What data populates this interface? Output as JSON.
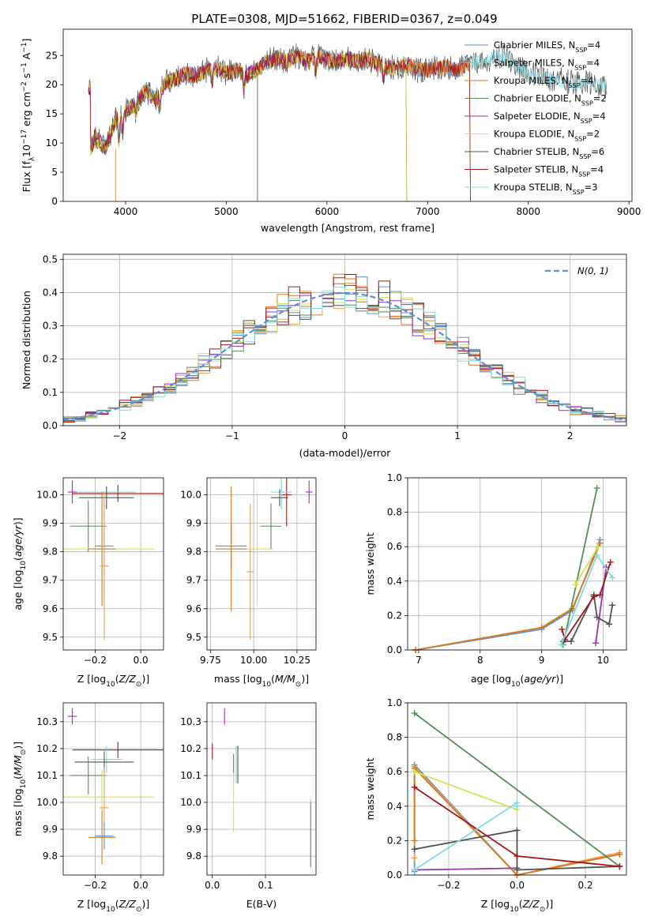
{
  "title": "PLATE=0308, MJD=51662, FIBERID=0367, z=0.049",
  "colors": {
    "Chabrier MILES": "#5b8fd6",
    "Salpeter MILES": "#f0a050",
    "Kroupa MILES": "#d57a1e",
    "Chabrier ELODIE": "#5a8a5a",
    "Salpeter ELODIE": "#9b2fb0",
    "Kroupa ELODIE": "#d8e04a",
    "Chabrier STELIB": "#505050",
    "Salpeter STELIB": "#a01818",
    "Kroupa STELIB": "#80d8e0",
    "gaussian": "#5b8fd6"
  },
  "chart_data": [
    {
      "id": "spectrum",
      "type": "line",
      "xlabel": "wavelength [Angstrom, rest frame]",
      "ylabel": "Flux [fλ10^-17 erg cm^-2 s^-1 A^-1]",
      "xlim": [
        3380,
        9030
      ],
      "ylim": [
        0,
        29.5
      ],
      "xticks": [
        4000,
        5000,
        6000,
        7000,
        8000,
        9000
      ],
      "yticks": [
        0,
        5,
        10,
        15,
        20,
        25
      ],
      "grid": false,
      "legend_placement": "right",
      "envelope": [
        [
          3650,
          9
        ],
        [
          3700,
          11
        ],
        [
          3800,
          9
        ],
        [
          3900,
          14
        ],
        [
          4000,
          15.5
        ],
        [
          4100,
          16.5
        ],
        [
          4200,
          19
        ],
        [
          4300,
          17.5
        ],
        [
          4400,
          20.5
        ],
        [
          4500,
          21
        ],
        [
          4600,
          22
        ],
        [
          4700,
          21.5
        ],
        [
          4800,
          22.5
        ],
        [
          4900,
          23
        ],
        [
          5000,
          22
        ],
        [
          5100,
          22.5
        ],
        [
          5200,
          21.5
        ],
        [
          5300,
          22.5
        ],
        [
          5400,
          24
        ],
        [
          5500,
          24.5
        ],
        [
          5600,
          24
        ],
        [
          5700,
          25
        ],
        [
          5800,
          24
        ],
        [
          5900,
          25
        ],
        [
          6000,
          24.5
        ],
        [
          6100,
          24
        ],
        [
          6200,
          24.5
        ],
        [
          6300,
          24
        ],
        [
          6400,
          24.5
        ],
        [
          6500,
          23.5
        ],
        [
          6600,
          23
        ],
        [
          6700,
          23
        ],
        [
          6800,
          23.5
        ],
        [
          6900,
          22.5
        ],
        [
          7000,
          22.5
        ],
        [
          7100,
          23
        ],
        [
          7200,
          23
        ],
        [
          7300,
          22.5
        ],
        [
          7400,
          23.5
        ],
        [
          7500,
          24
        ],
        [
          7600,
          24
        ],
        [
          7700,
          25
        ],
        [
          7800,
          24.5
        ],
        [
          7900,
          23
        ],
        [
          8000,
          22
        ],
        [
          8100,
          21.5
        ],
        [
          8200,
          21
        ],
        [
          8300,
          21
        ],
        [
          8400,
          20.5
        ],
        [
          8500,
          20
        ],
        [
          8600,
          20.5
        ],
        [
          8700,
          20
        ],
        [
          8780,
          19.5
        ]
      ],
      "series": [
        {
          "name": "Chabrier MILES, N_SSP=4",
          "label": "Chabrier MILES, N",
          "n": "=4",
          "xmax": 7420
        },
        {
          "name": "Salpeter MILES, N_SSP=4",
          "label": "Salpeter MILES, N",
          "n": "=4",
          "xmax": 7420
        },
        {
          "name": "Kroupa MILES, N_SSP=4",
          "label": "Kroupa MILES, N",
          "n": "=4",
          "xmax": 7420
        },
        {
          "name": "Chabrier ELODIE, N_SSP=2",
          "label": "Chabrier ELODIE, N",
          "n": "=2",
          "xmax": 6790
        },
        {
          "name": "Salpeter ELODIE, N_SSP=4",
          "label": "Salpeter ELODIE, N",
          "n": "=4",
          "xmax": 6790
        },
        {
          "name": "Kroupa ELODIE, N_SSP=2",
          "label": "Kroupa ELODIE, N",
          "n": "=2",
          "xmax": 6790
        },
        {
          "name": "Chabrier STELIB, N_SSP=6",
          "label": "Chabrier STELIB, N",
          "n": "=6",
          "xmax": 8780
        },
        {
          "name": "Salpeter STELIB, N_SSP=4",
          "label": "Salpeter STELIB, N",
          "n": "=4",
          "xmax": 7420
        },
        {
          "name": "Kroupa STELIB, N_SSP=3",
          "label": "Kroupa STELIB, N",
          "n": "=3",
          "xmax": 8780
        }
      ]
    },
    {
      "id": "residuals",
      "type": "bar",
      "xlabel": "(data-model)/error",
      "ylabel": "Normed distribution",
      "xlim": [
        -2.5,
        2.5
      ],
      "ylim": [
        0,
        0.515
      ],
      "xticks": [
        -2,
        -1,
        0,
        1,
        2
      ],
      "yticks": [
        0.0,
        0.1,
        0.2,
        0.3,
        0.4,
        0.5
      ],
      "grid": true,
      "legend": "N(0, 1)",
      "legend_placement": "top-right",
      "bin_width": 0.1,
      "bin_start": -2.5,
      "gaussian": {
        "mean": 0,
        "sigma": 1
      }
    },
    {
      "id": "age-vs-Z",
      "type": "scatter",
      "xlabel": "Z [log10(Z/Z⊙)]",
      "ylabel": "age  [log10(age/yr)]",
      "xlim": [
        -0.34,
        0.1
      ],
      "ylim": [
        9.455,
        10.06
      ],
      "xticks": [
        -0.2,
        0.0
      ],
      "yticks": [
        9.5,
        9.6,
        9.7,
        9.8,
        9.9,
        10.0
      ],
      "grid": true,
      "points": [
        {
          "series": "Salpeter ELODIE",
          "x": -0.3,
          "y": 10.01,
          "xerr": 0.02,
          "yerr": 0.04
        },
        {
          "series": "Salpeter STELIB",
          "x": -0.1,
          "y": 10.005,
          "xerr": 0.2,
          "yerr": 0.03
        },
        {
          "series": "Kroupa STELIB",
          "x": -0.15,
          "y": 10.01,
          "xerr": 0.13,
          "yerr": 0.02
        },
        {
          "series": "Chabrier STELIB",
          "x": -0.15,
          "y": 9.99,
          "xerr": 0.12,
          "yerr": 0.04
        },
        {
          "series": "Chabrier ELODIE",
          "x": -0.23,
          "y": 9.89,
          "xerr": 0.08,
          "yerr": 0.09
        },
        {
          "series": "Chabrier MILES",
          "x": -0.16,
          "y": 9.82,
          "xerr": 0.04,
          "yerr": 0.18
        },
        {
          "series": "Kroupa ELODIE",
          "x": -0.17,
          "y": 9.81,
          "xerr": 0.23,
          "yerr": 0.16
        },
        {
          "series": "Kroupa MILES",
          "x": -0.17,
          "y": 9.81,
          "xerr": 0.06,
          "yerr": 0.2
        },
        {
          "series": "Salpeter MILES",
          "x": -0.16,
          "y": 9.75,
          "xerr": 0.02,
          "yerr": 0.26
        }
      ]
    },
    {
      "id": "age-vs-mass",
      "type": "scatter",
      "xlabel": "mass [log10(M/M⊙)]",
      "ylabel": "",
      "xlim": [
        9.73,
        10.36
      ],
      "ylim": [
        9.455,
        10.06
      ],
      "xticks": [
        9.75,
        10.0,
        10.25
      ],
      "yticks": [
        9.5,
        9.6,
        9.7,
        9.8,
        9.9,
        10.0
      ],
      "grid": true,
      "points": [
        {
          "series": "Salpeter ELODIE",
          "x": 10.32,
          "y": 10.01,
          "xerr": 0.02,
          "yerr": 0.04
        },
        {
          "series": "Salpeter STELIB",
          "x": 10.19,
          "y": 10.0,
          "xerr": 0.03,
          "yerr": 0.11
        },
        {
          "series": "Kroupa STELIB",
          "x": 10.16,
          "y": 10.01,
          "xerr": 0.06,
          "yerr": 0.06
        },
        {
          "series": "Chabrier STELIB",
          "x": 10.15,
          "y": 9.99,
          "xerr": 0.05,
          "yerr": 0.03
        },
        {
          "series": "Chabrier ELODIE",
          "x": 10.1,
          "y": 9.89,
          "xerr": 0.06,
          "yerr": 0.08
        },
        {
          "series": "Kroupa ELODIE",
          "x": 10.02,
          "y": 9.81,
          "xerr": 0.09,
          "yerr": 0.2
        },
        {
          "series": "Chabrier MILES",
          "x": 9.87,
          "y": 9.82,
          "xerr": 0.09,
          "yerr": 0.08
        },
        {
          "series": "Kroupa MILES",
          "x": 9.87,
          "y": 9.81,
          "xerr": 0.09,
          "yerr": 0.22
        },
        {
          "series": "Salpeter MILES",
          "x": 9.98,
          "y": 9.73,
          "xerr": 0.02,
          "yerr": 0.24
        }
      ]
    },
    {
      "id": "weight-vs-age",
      "type": "line",
      "xlabel": "age  [log10(age/yr)]",
      "ylabel": "mass weight",
      "xlim": [
        6.82,
        10.38
      ],
      "ylim": [
        0,
        1.0
      ],
      "xticks": [
        7,
        8,
        9,
        10
      ],
      "yticks": [
        0.0,
        0.2,
        0.4,
        0.6,
        0.8,
        1.0
      ],
      "grid": true,
      "series": [
        {
          "name": "Chabrier MILES",
          "points": [
            [
              6.95,
              0.0
            ],
            [
              9.0,
              0.12
            ],
            [
              9.5,
              0.23
            ],
            [
              9.95,
              0.64
            ]
          ]
        },
        {
          "name": "Salpeter MILES",
          "points": [
            [
              6.95,
              0.0
            ],
            [
              9.0,
              0.13
            ],
            [
              9.5,
              0.24
            ],
            [
              9.95,
              0.62
            ]
          ]
        },
        {
          "name": "Kroupa MILES",
          "points": [
            [
              6.95,
              0.0
            ],
            [
              9.0,
              0.13
            ],
            [
              9.5,
              0.24
            ],
            [
              9.95,
              0.62
            ]
          ]
        },
        {
          "name": "Chabrier ELODIE",
          "points": [
            [
              9.35,
              0.03
            ],
            [
              9.9,
              0.94
            ]
          ]
        },
        {
          "name": "Salpeter ELODIE",
          "points": [
            [
              9.88,
              0.04
            ],
            [
              10.05,
              0.48
            ]
          ]
        },
        {
          "name": "Kroupa ELODIE",
          "points": [
            [
              9.55,
              0.38
            ],
            [
              9.92,
              0.6
            ]
          ]
        },
        {
          "name": "Chabrier STELIB",
          "points": [
            [
              9.35,
              0.05
            ],
            [
              9.48,
              0.05
            ],
            [
              9.85,
              0.32
            ],
            [
              9.9,
              0.19
            ],
            [
              10.1,
              0.15
            ],
            [
              10.15,
              0.26
            ]
          ]
        },
        {
          "name": "Salpeter STELIB",
          "points": [
            [
              9.33,
              0.12
            ],
            [
              9.38,
              0.06
            ],
            [
              9.85,
              0.31
            ],
            [
              9.95,
              0.32
            ],
            [
              10.12,
              0.51
            ]
          ]
        },
        {
          "name": "Kroupa STELIB",
          "points": [
            [
              9.32,
              0.03
            ],
            [
              9.9,
              0.55
            ],
            [
              10.15,
              0.42
            ]
          ]
        }
      ]
    },
    {
      "id": "mass-vs-Z",
      "type": "scatter",
      "xlabel": "Z [log10(Z/Z⊙)]",
      "ylabel": "mass [log10(M/M⊙)]",
      "xlim": [
        -0.34,
        0.1
      ],
      "ylim": [
        9.73,
        10.37
      ],
      "xticks": [
        -0.2,
        0.0
      ],
      "yticks": [
        9.8,
        9.9,
        10.0,
        10.1,
        10.2,
        10.3
      ],
      "grid": true,
      "points": [
        {
          "series": "Salpeter ELODIE",
          "x": -0.3,
          "y": 10.32,
          "xerr": 0.02,
          "yerr": 0.03
        },
        {
          "series": "Salpeter STELIB",
          "x": -0.1,
          "y": 10.195,
          "xerr": 0.2,
          "yerr": 0.03
        },
        {
          "series": "Kroupa STELIB",
          "x": -0.15,
          "y": 10.16,
          "xerr": 0.07,
          "yerr": 0.05
        },
        {
          "series": "Chabrier STELIB",
          "x": -0.16,
          "y": 10.15,
          "xerr": 0.13,
          "yerr": 0.04
        },
        {
          "series": "Chabrier ELODIE",
          "x": -0.23,
          "y": 10.1,
          "xerr": 0.08,
          "yerr": 0.07
        },
        {
          "series": "Kroupa ELODIE",
          "x": -0.17,
          "y": 10.02,
          "xerr": 0.23,
          "yerr": 0.1
        },
        {
          "series": "Salpeter MILES",
          "x": -0.16,
          "y": 9.98,
          "xerr": 0.02,
          "yerr": 0.15
        },
        {
          "series": "Chabrier MILES",
          "x": -0.16,
          "y": 9.875,
          "xerr": 0.04,
          "yerr": 0.05
        },
        {
          "series": "Kroupa MILES",
          "x": -0.17,
          "y": 9.87,
          "xerr": 0.06,
          "yerr": 0.1
        }
      ]
    },
    {
      "id": "mass-vs-EBV",
      "type": "scatter",
      "xlabel": "E(B-V)",
      "ylabel": "",
      "xlim": [
        -0.01,
        0.195
      ],
      "ylim": [
        9.73,
        10.37
      ],
      "xticks": [
        0.0,
        0.1
      ],
      "yticks": [
        9.8,
        9.9,
        10.0,
        10.1,
        10.2,
        10.3
      ],
      "grid": true,
      "points": [
        {
          "series": "Salpeter ELODIE",
          "x": 0.023,
          "y": 10.32,
          "xerr": 0.0,
          "yerr": 0.03
        },
        {
          "series": "Salpeter STELIB",
          "x": 0.0,
          "y": 10.19,
          "xerr": 0.0,
          "yerr": 0.03
        },
        {
          "series": "Chabrier ELODIE",
          "x": 0.04,
          "y": 10.14,
          "xerr": 0.0,
          "yerr": 0.04
        },
        {
          "series": "Kroupa STELIB",
          "x": 0.045,
          "y": 10.14,
          "xerr": 0.0,
          "yerr": 0.07
        },
        {
          "series": "Chabrier STELIB",
          "x": 0.048,
          "y": 10.14,
          "xerr": 0.0,
          "yerr": 0.07
        },
        {
          "series": "Kroupa ELODIE",
          "x": 0.04,
          "y": 10.0,
          "xerr": 0.0,
          "yerr": 0.11
        },
        {
          "series": "Salpeter MILES",
          "x": 0.185,
          "y": 9.95,
          "xerr": 0.0,
          "yerr": 0.06
        },
        {
          "series": "Kroupa MILES",
          "x": 0.185,
          "y": 9.83,
          "xerr": 0.0,
          "yerr": 0.07
        },
        {
          "series": "Chabrier MILES",
          "x": 0.185,
          "y": 9.88,
          "xerr": 0.0,
          "yerr": 0.12
        }
      ]
    },
    {
      "id": "weight-vs-Z",
      "type": "line",
      "xlabel": "Z [log10(Z/Z⊙)]",
      "ylabel": "mass weight",
      "xlim": [
        -0.32,
        0.32
      ],
      "ylim": [
        0,
        1.0
      ],
      "xticks": [
        -0.2,
        0.0,
        0.2
      ],
      "yticks": [
        0.0,
        0.2,
        0.4,
        0.6,
        0.8,
        1.0
      ],
      "grid": true,
      "series": [
        {
          "name": "Chabrier MILES",
          "points": [
            [
              -0.3,
              0.02
            ],
            [
              -0.3,
              0.64
            ],
            [
              0.0,
              0.0
            ],
            [
              0.3,
              0.12
            ]
          ]
        },
        {
          "name": "Salpeter MILES",
          "points": [
            [
              -0.3,
              0.1
            ],
            [
              -0.3,
              0.63
            ],
            [
              0.0,
              0.0
            ],
            [
              0.3,
              0.13
            ]
          ]
        },
        {
          "name": "Kroupa MILES",
          "points": [
            [
              -0.3,
              0.2
            ],
            [
              -0.3,
              0.62
            ],
            [
              0.0,
              0.0
            ],
            [
              0.3,
              0.12
            ]
          ]
        },
        {
          "name": "Chabrier ELODIE",
          "points": [
            [
              -0.3,
              0.94
            ],
            [
              0.3,
              0.05
            ]
          ]
        },
        {
          "name": "Salpeter ELODIE",
          "points": [
            [
              -0.3,
              0.03
            ],
            [
              0.0,
              0.04
            ],
            [
              0.0,
              0.04
            ]
          ]
        },
        {
          "name": "Kroupa ELODIE",
          "points": [
            [
              -0.3,
              0.6
            ],
            [
              0.0,
              0.38
            ]
          ]
        },
        {
          "name": "Chabrier STELIB",
          "points": [
            [
              -0.3,
              0.15
            ],
            [
              0.0,
              0.26
            ],
            [
              0.0,
              0.03
            ],
            [
              0.3,
              0.05
            ]
          ]
        },
        {
          "name": "Salpeter STELIB",
          "points": [
            [
              -0.3,
              0.51
            ],
            [
              0.0,
              0.11
            ],
            [
              0.3,
              0.05
            ]
          ]
        },
        {
          "name": "Kroupa STELIB",
          "points": [
            [
              -0.3,
              0.03
            ],
            [
              0.0,
              0.42
            ],
            [
              0.0,
              0.4
            ]
          ]
        }
      ]
    }
  ]
}
